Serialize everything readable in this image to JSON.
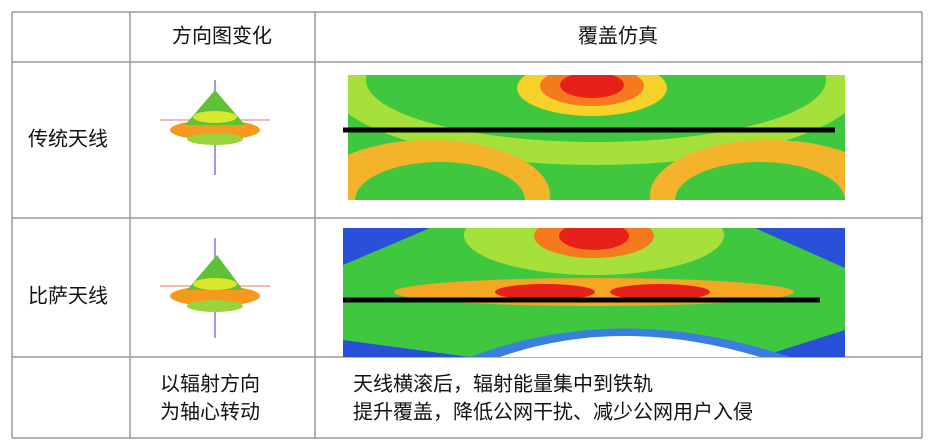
{
  "table": {
    "header": [
      "方向图变化",
      "覆盖仿真"
    ],
    "rows": [
      {
        "label": "传统天线"
      },
      {
        "label": "比萨天线"
      }
    ],
    "note": {
      "pattern": [
        "以辐射方向",
        "为轴心转动"
      ],
      "coverage": [
        "天线横滚后，辐射能量集中到铁轨",
        "提升覆盖，降低公网干扰、减少公网用户入侵"
      ]
    }
  }
}
